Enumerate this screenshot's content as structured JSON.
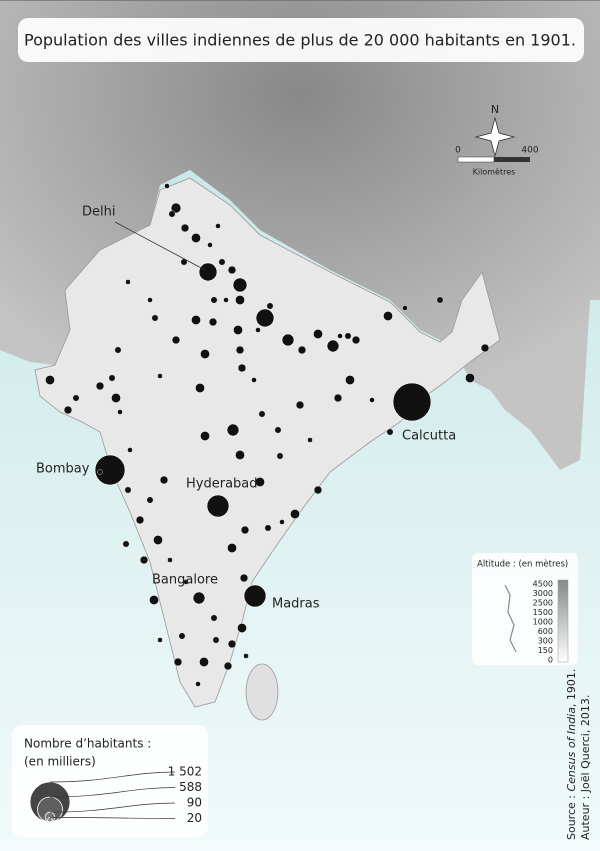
{
  "title": "Population des villes indiennes de plus de 20 000 habitants en 1901.",
  "compass": "N",
  "scale": {
    "ticks": [
      "0",
      "400"
    ],
    "unit": "Kilomètres"
  },
  "cities": [
    "Delhi",
    "Calcutta",
    "Bombay",
    "Hyderabad",
    "Bangalore",
    "Madras"
  ],
  "altitude": {
    "title": "Altitude : (en mètres)",
    "levels": [
      4500,
      3000,
      2500,
      1500,
      1000,
      600,
      300,
      150,
      0
    ]
  },
  "population_legend": {
    "title": "Nombre d’habitants :",
    "subtitle": "(en milliers)",
    "items": [
      {
        "value": 1502,
        "label": "1 502"
      },
      {
        "value": 588,
        "label": "588"
      },
      {
        "value": 90,
        "label": "90"
      },
      {
        "value": 20,
        "label": "20"
      }
    ]
  },
  "source": {
    "prefix": "Source : ",
    "work": "Census of India",
    "suffix": ", 1901."
  },
  "author": "Auteur : Joël Querci, 2013."
}
